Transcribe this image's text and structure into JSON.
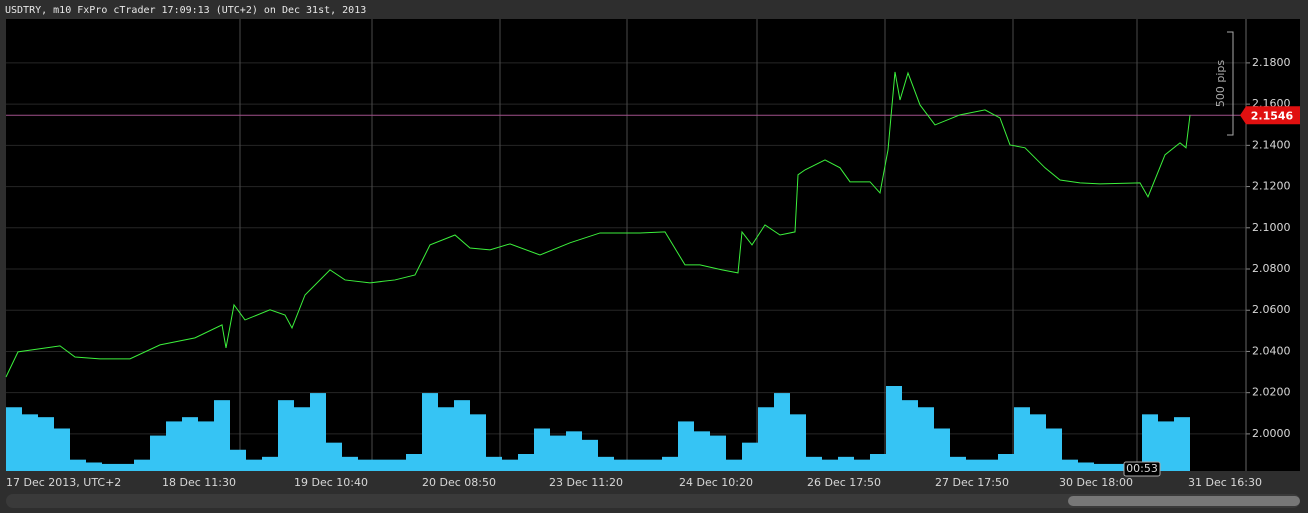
{
  "chart_data": {
    "type": "line",
    "title": "USDTRY, m10 FxPro cTrader 17:09:13 (UTC+2) on Dec 31st, 2013",
    "xlim": [
      0,
      1240
    ],
    "ylim": [
      1.982,
      2.2013
    ],
    "xticks": [
      {
        "value": 0,
        "label": "17 Dec 2013, UTC+2"
      },
      {
        "value": 234,
        "label": "18 Dec 11:30"
      },
      {
        "value": 366,
        "label": "19 Dec 10:40"
      },
      {
        "value": 494,
        "label": "20 Dec 08:50"
      },
      {
        "value": 621,
        "label": "23 Dec 11:20"
      },
      {
        "value": 751,
        "label": "24 Dec 10:20"
      },
      {
        "value": 879,
        "label": "26 Dec 17:50"
      },
      {
        "value": 1007,
        "label": "27 Dec 17:50"
      },
      {
        "value": 1131,
        "label": "30 Dec 18:00"
      },
      {
        "value": 1260,
        "label": "31 Dec 16:30"
      }
    ],
    "yticks": [
      {
        "value": 2.0,
        "label": "2.0000"
      },
      {
        "value": 2.02,
        "label": "2.0200"
      },
      {
        "value": 2.04,
        "label": "2.0400"
      },
      {
        "value": 2.06,
        "label": "2.0600"
      },
      {
        "value": 2.08,
        "label": "2.0800"
      },
      {
        "value": 2.1,
        "label": "2.1000"
      },
      {
        "value": 2.12,
        "label": "2.1200"
      },
      {
        "value": 2.14,
        "label": "2.1400"
      },
      {
        "value": 2.16,
        "label": "2.1600"
      },
      {
        "value": 2.18,
        "label": "2.1800"
      }
    ],
    "grid": true,
    "series": [
      {
        "color": "#3cf03c",
        "x": [
          0,
          12,
          54,
          69,
          94,
          124,
          154,
          189,
          216,
          220,
          228,
          239,
          264,
          279,
          286,
          299,
          324,
          339,
          364,
          389,
          409,
          424,
          449,
          464,
          484,
          504,
          534,
          564,
          594,
          634,
          659,
          679,
          694,
          716,
          732,
          736,
          746,
          759,
          774,
          789,
          792,
          799,
          819,
          834,
          844,
          864,
          874,
          882,
          889,
          894,
          902,
          914,
          929,
          954,
          979,
          994,
          1004,
          1019,
          1039,
          1054,
          1074,
          1094,
          1134,
          1142,
          1159,
          1174,
          1180,
          1184
        ],
        "values": [
          2.0276,
          2.0398,
          2.0427,
          2.0373,
          2.0364,
          2.0364,
          2.0432,
          2.0466,
          2.0529,
          2.0417,
          2.0626,
          2.0553,
          2.0602,
          2.0577,
          2.0514,
          2.0674,
          2.0796,
          2.0747,
          2.0733,
          2.0747,
          2.0771,
          2.0917,
          2.0965,
          2.0902,
          2.0893,
          2.0922,
          2.0868,
          2.0927,
          2.0975,
          2.0975,
          2.098,
          2.082,
          2.082,
          2.0796,
          2.0781,
          2.098,
          2.0917,
          2.1014,
          2.0965,
          2.098,
          2.1257,
          2.1281,
          2.1329,
          2.1291,
          2.1223,
          2.1223,
          2.1169,
          2.1378,
          2.1756,
          2.162,
          2.1751,
          2.1596,
          2.1499,
          2.1548,
          2.1572,
          2.1533,
          2.1402,
          2.1388,
          2.1291,
          2.1232,
          2.1218,
          2.1213,
          2.1218,
          2.115,
          2.1354,
          2.1412,
          2.1388,
          2.1546
        ]
      }
    ],
    "volume_color": "#36c4f4",
    "volume_values": [
      45,
      40,
      38,
      30,
      8,
      6,
      5,
      5,
      8,
      25,
      35,
      38,
      35,
      50,
      15,
      8,
      10,
      50,
      45,
      55,
      20,
      10,
      8,
      8,
      8,
      12,
      55,
      45,
      50,
      40,
      10,
      8,
      12,
      30,
      25,
      28,
      22,
      10,
      8,
      8,
      8,
      10,
      35,
      28,
      25,
      8,
      20,
      45,
      55,
      40,
      10,
      8,
      10,
      8,
      12,
      60,
      50,
      45,
      30,
      10,
      8,
      8,
      12,
      45,
      40,
      30,
      8,
      6,
      5,
      5,
      6,
      40,
      35,
      38
    ],
    "current_price": {
      "value": 2.1546,
      "label": "2.1546",
      "line_color": "#a0508a",
      "label_color": "#e01010"
    },
    "ruler": {
      "label": "500 pips",
      "from": 2.145,
      "to": 2.195
    },
    "countdown": "00:53"
  }
}
